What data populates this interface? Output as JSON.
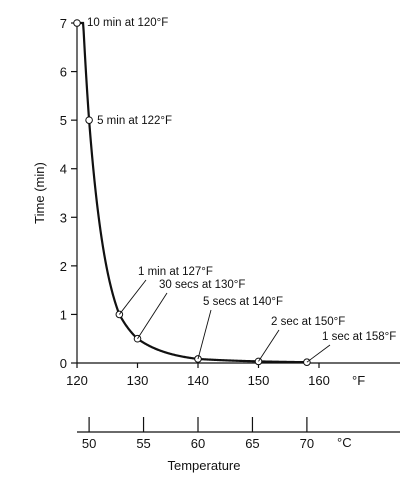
{
  "chart_data": {
    "type": "line",
    "ylabel": "Time (min)",
    "xlabel": "Temperature",
    "x_unit": "°F",
    "secondary_x_unit": "°C",
    "xlim": [
      120,
      164
    ],
    "ylim": [
      0,
      7
    ],
    "x_ticks": [
      120,
      130,
      140,
      150,
      160
    ],
    "y_ticks": [
      0,
      1,
      2,
      3,
      4,
      5,
      6,
      7
    ],
    "celsius_ticks": [
      50,
      55,
      60,
      65,
      70
    ],
    "grid": false,
    "points": [
      {
        "x": 120,
        "y": 10,
        "label": "10 min at 120°F"
      },
      {
        "x": 122,
        "y": 5,
        "label": "5 min at 122°F"
      },
      {
        "x": 127,
        "y": 1,
        "label": "1 min at 127°F"
      },
      {
        "x": 130,
        "y": 0.5,
        "label": "30 secs at 130°F"
      },
      {
        "x": 140,
        "y": 0.0833,
        "label": "5 secs at 140°F"
      },
      {
        "x": 150,
        "y": 0.0333,
        "label": "2 sec at 150°F"
      },
      {
        "x": 158,
        "y": 0.0167,
        "label": "1 sec at 158°F"
      }
    ]
  }
}
